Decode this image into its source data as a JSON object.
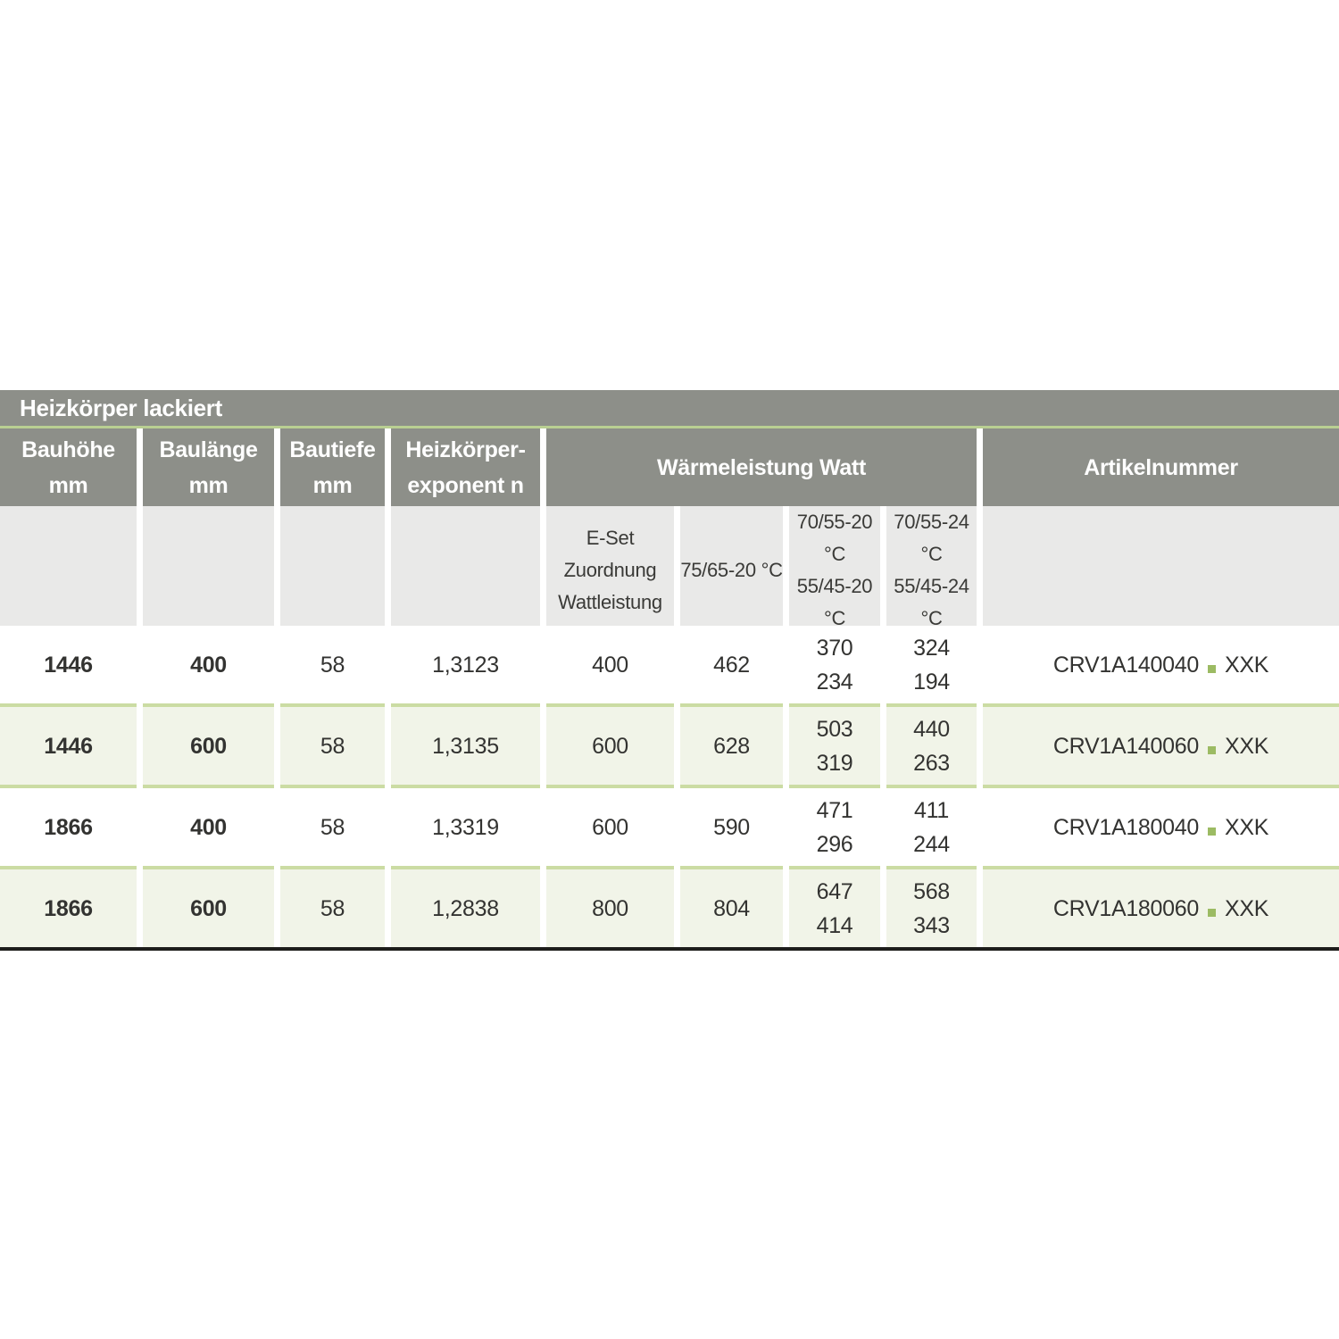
{
  "table": {
    "title": "Heizkörper lackiert",
    "column_headers": [
      {
        "line1": "Bauhöhe",
        "line2": "mm"
      },
      {
        "line1": "Baulänge",
        "line2": "mm"
      },
      {
        "line1": "Bautiefe",
        "line2": "mm"
      },
      {
        "line1": "Heizkörper-",
        "line2": "exponent n"
      }
    ],
    "group_header": "Wärmeleistung Watt",
    "artikel_header": "Artikelnummer",
    "sub_headers": {
      "eset": {
        "line1": "E-Set",
        "line2": "Zuordnung",
        "line3": "Wattleistung"
      },
      "t7565": {
        "line1": "75/65-20 °C"
      },
      "t7055_20": {
        "line1": "70/55-20 °C",
        "line2": "55/45-20 °C"
      },
      "t7055_24": {
        "line1": "70/55-24 °C",
        "line2": "55/45-24 °C"
      }
    },
    "rows": [
      {
        "bauhoehe_mm": "1446",
        "baulaenge_mm": "400",
        "bautiefe_mm": "58",
        "exponent_n": "1,3123",
        "eset_watt": "400",
        "watt_7565": "462",
        "watt_7055_20": [
          "370",
          "234"
        ],
        "watt_7055_24": [
          "324",
          "194"
        ],
        "artikelnummer": {
          "prefix": "CRV1A140040",
          "suffix": "XXK"
        }
      },
      {
        "bauhoehe_mm": "1446",
        "baulaenge_mm": "600",
        "bautiefe_mm": "58",
        "exponent_n": "1,3135",
        "eset_watt": "600",
        "watt_7565": "628",
        "watt_7055_20": [
          "503",
          "319"
        ],
        "watt_7055_24": [
          "440",
          "263"
        ],
        "artikelnummer": {
          "prefix": "CRV1A140060",
          "suffix": "XXK"
        }
      },
      {
        "bauhoehe_mm": "1866",
        "baulaenge_mm": "400",
        "bautiefe_mm": "58",
        "exponent_n": "1,3319",
        "eset_watt": "600",
        "watt_7565": "590",
        "watt_7055_20": [
          "471",
          "296"
        ],
        "watt_7055_24": [
          "411",
          "244"
        ],
        "artikelnummer": {
          "prefix": "CRV1A180040",
          "suffix": "XXK"
        }
      },
      {
        "bauhoehe_mm": "1866",
        "baulaenge_mm": "600",
        "bautiefe_mm": "58",
        "exponent_n": "1,2838",
        "eset_watt": "800",
        "watt_7565": "804",
        "watt_7055_20": [
          "647",
          "414"
        ],
        "watt_7055_24": [
          "568",
          "343"
        ],
        "artikelnummer": {
          "prefix": "CRV1A180060",
          "suffix": "XXK"
        }
      }
    ],
    "colors": {
      "header_gray": "#8d8f89",
      "subheader_gray": "#e9e9e8",
      "row_alt_green": "#f1f4e8",
      "title_line_green": "#b9cf92",
      "thick_line_green": "#b0c889",
      "row_separator_green": "#cbdca3",
      "artikel_dot_green": "#9cbb63",
      "text_dark": "#333331",
      "header_text": "#ffffff",
      "bottom_border": "#1d1d1b"
    }
  }
}
